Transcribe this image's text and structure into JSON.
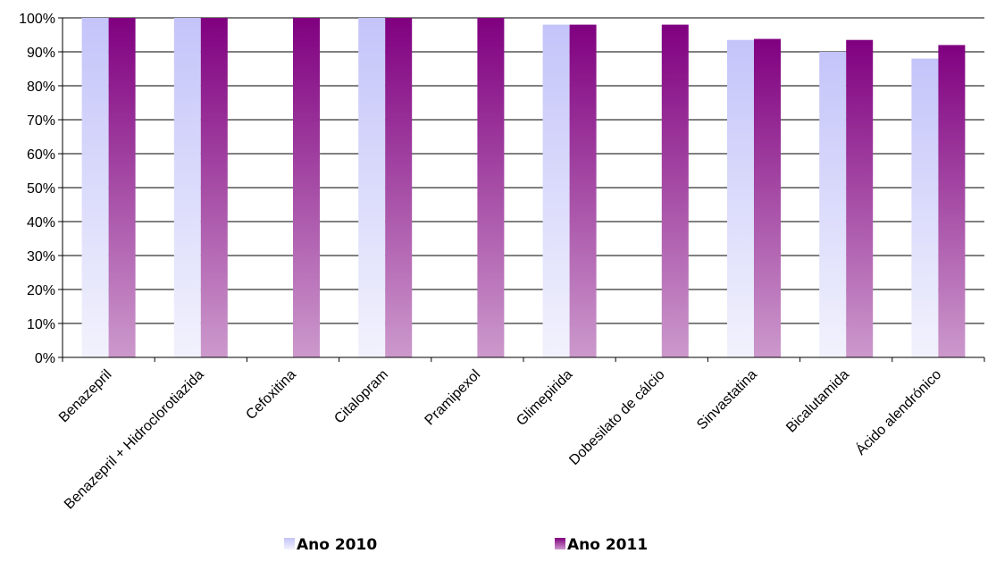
{
  "chart_data": {
    "type": "bar",
    "title": "",
    "xlabel": "",
    "ylabel": "",
    "ylim": [
      0,
      100
    ],
    "y_tick_labels": [
      "0%",
      "10%",
      "20%",
      "30%",
      "40%",
      "50%",
      "60%",
      "70%",
      "80%",
      "90%",
      "100%"
    ],
    "y_ticks": [
      0,
      10,
      20,
      30,
      40,
      50,
      60,
      70,
      80,
      90,
      100
    ],
    "grid": true,
    "legend_position": "bottom",
    "categories": [
      "Benazepril",
      "Benazepril + Hidroclorotiazida",
      "Cefoxitina",
      "Citalopram",
      "Pramipexol",
      "Glimepirida",
      "Dobesilato de cálcio",
      "Sinvastatina",
      "Bicalutamida",
      "Ácido alendrónico"
    ],
    "series": [
      {
        "name": "Ano 2010",
        "color_top": "#c4c4fa",
        "color_bottom": "#f2f2fd",
        "values": [
          100,
          100,
          0,
          100,
          0,
          98,
          0,
          93.5,
          90,
          88
        ]
      },
      {
        "name": "Ano 2011",
        "color_top": "#800080",
        "color_bottom": "#cc99cc",
        "values": [
          100,
          100,
          100,
          100,
          100,
          98,
          98,
          93.8,
          93.5,
          92
        ]
      }
    ]
  }
}
